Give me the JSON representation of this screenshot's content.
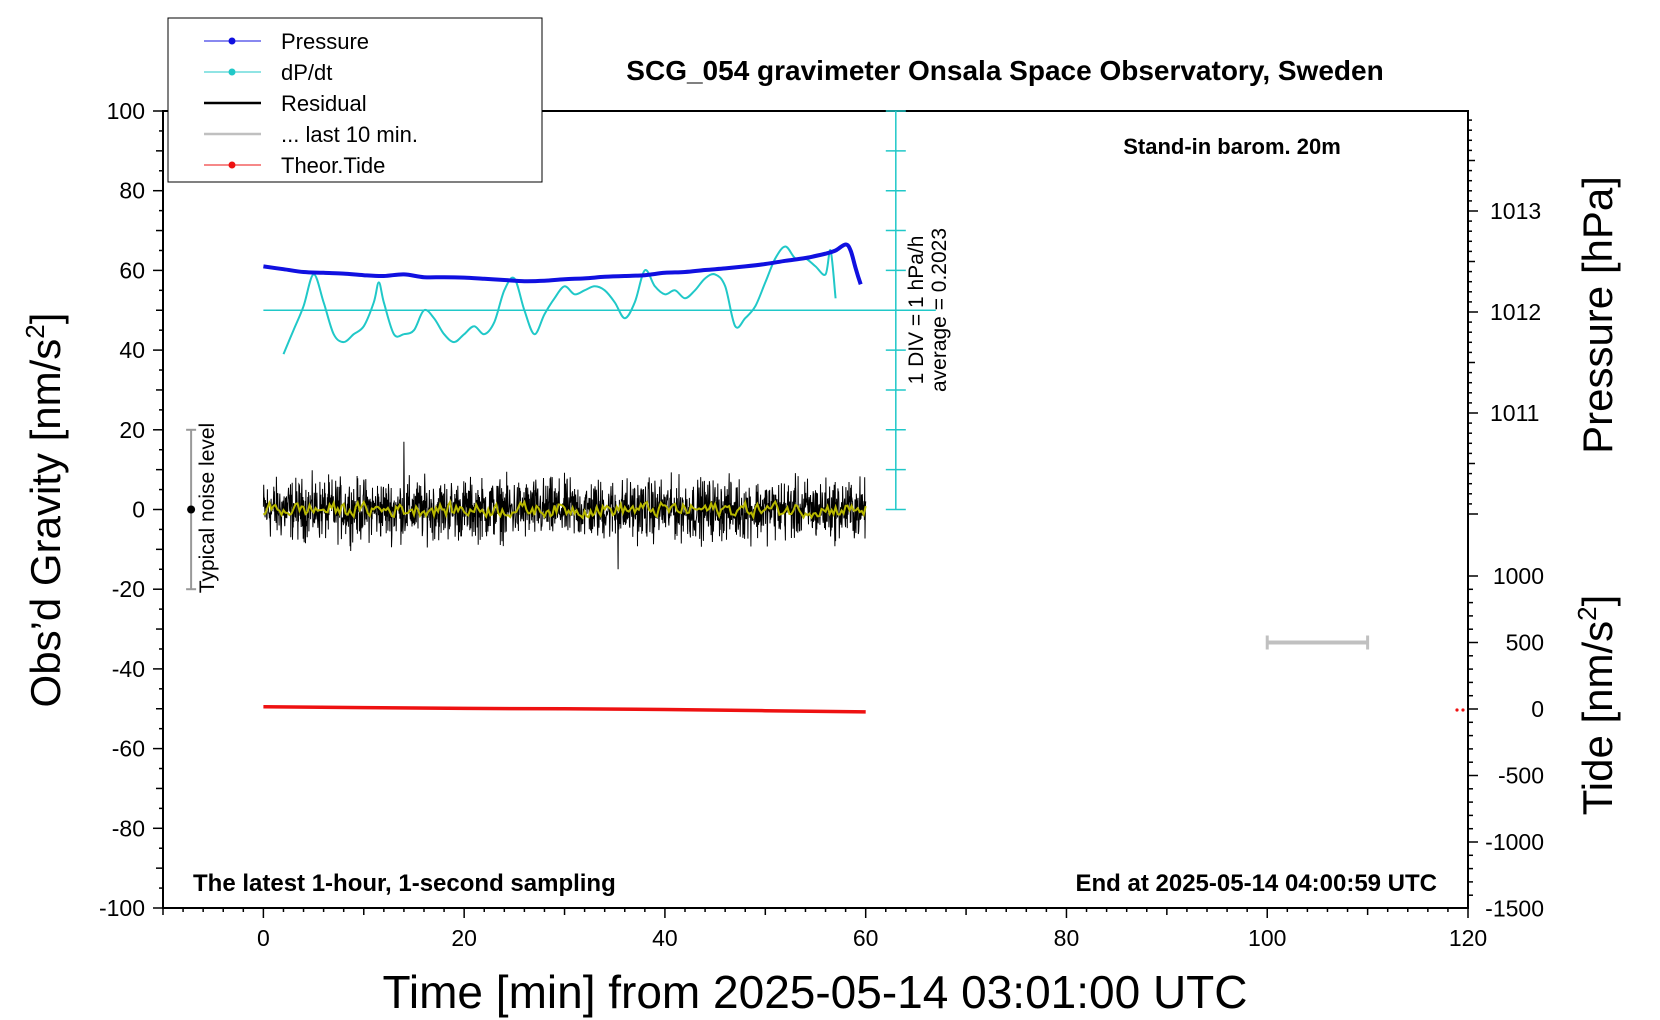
{
  "chart_data": {
    "type": "line",
    "title": "SCG_054 gravimeter Onsala Space Observatory, Sweden",
    "xlabel": "Time [min] from 2025-05-14 03:01:00 UTC",
    "ylabel_left": "Obs’d Gravity [nm/s",
    "ylabel_left_sup": "2",
    "ylabel_left_end": "]",
    "ylabel_right_top": "Pressure [hPa]",
    "ylabel_right_bottom": "Tide [nm/s",
    "ylabel_right_bottom_sup": "2",
    "ylabel_right_bottom_end": "]",
    "xlim": [
      -10,
      120
    ],
    "ylim_left": [
      -100,
      100
    ],
    "x_ticks": [
      "0",
      "20",
      "40",
      "60",
      "80",
      "100",
      "120"
    ],
    "y_ticks_left": [
      "100",
      "80",
      "60",
      "40",
      "20",
      "0",
      "-20",
      "-40",
      "-60",
      "-80",
      "-100"
    ],
    "pressure_ticks": [
      "1013",
      "1012",
      "1011"
    ],
    "tide_ticks": [
      "1000",
      "500",
      "0",
      "-500",
      "-1000",
      "-1500"
    ],
    "annotations": {
      "stand_in": "Stand-in barom. 20m",
      "div_label": "1 DIV = 1 hPa/h",
      "average_label": "average = 0.2023",
      "noise_label": "Typical noise level",
      "bottom_left": "The latest 1-hour, 1-second sampling",
      "bottom_right": "End at 2025-05-14 04:00:59 UTC"
    },
    "legend": {
      "placement": "top-left",
      "entries": [
        {
          "name": "Pressure",
          "color": "#1010e0"
        },
        {
          "name": "dP/dt",
          "color": "#20c8c8"
        },
        {
          "name": "Residual",
          "color": "#000000"
        },
        {
          "name": "... last 10 min.",
          "color": "#c0c0c0"
        },
        {
          "name": "Theor.Tide",
          "color": "#ee1111"
        }
      ]
    },
    "series": [
      {
        "name": "Pressure",
        "color": "#1010e0",
        "x": [
          0,
          2,
          4,
          6,
          8,
          10,
          12,
          14,
          16,
          18,
          20,
          22,
          24,
          26,
          28,
          30,
          32,
          34,
          36,
          38,
          40,
          42,
          44,
          46,
          48,
          50,
          52,
          54,
          56,
          57,
          58,
          58.5,
          59,
          59.5
        ],
        "y": [
          61,
          60.3,
          59.6,
          59.4,
          59.2,
          58.8,
          58.6,
          59.0,
          58.3,
          58.3,
          58.2,
          57.9,
          57.6,
          57.3,
          57.4,
          57.8,
          58.0,
          58.4,
          58.6,
          58.8,
          59.4,
          59.6,
          60.1,
          60.5,
          61.0,
          61.6,
          62.4,
          63.1,
          64.2,
          65.0,
          66.5,
          65.0,
          60.5,
          56.5
        ]
      },
      {
        "name": "dP/dt",
        "color": "#20c8c8",
        "x": [
          2,
          3,
          4,
          5,
          6,
          7,
          8,
          9,
          10,
          11,
          11.5,
          12,
          13,
          14,
          15,
          16,
          17,
          18,
          19,
          20,
          21,
          22,
          23,
          24,
          25,
          26,
          27,
          28,
          29,
          30,
          31,
          32,
          33,
          34,
          35,
          36,
          37,
          38,
          39,
          40,
          41,
          42,
          43,
          44,
          45,
          46,
          47,
          48,
          49,
          50,
          51,
          52,
          53,
          54,
          55,
          56,
          56.5,
          57
        ],
        "y": [
          39,
          45,
          51,
          59,
          52,
          44,
          42,
          44,
          46,
          52,
          57,
          52,
          44,
          44,
          45,
          50,
          48,
          44,
          42,
          44,
          46,
          44,
          47,
          55,
          58,
          50,
          44,
          49,
          53,
          56,
          54,
          55,
          56,
          55,
          52,
          48,
          52,
          60,
          56,
          54,
          55,
          53,
          55,
          58,
          59,
          56,
          46,
          48,
          51,
          57,
          63,
          66,
          63,
          63,
          61,
          59,
          65,
          53
        ]
      },
      {
        "name": "Residual",
        "color": "#000000",
        "x_range": [
          0,
          60
        ],
        "y_center": 0,
        "noise_amplitude": 11,
        "y_max": 17,
        "y_min": -15
      },
      {
        "name": "Residual (smoothed)",
        "color": "#b8b800",
        "x_range": [
          0,
          60
        ],
        "y_center": 0
      },
      {
        "name": "Theor.Tide",
        "color": "#ee1111",
        "x": [
          0,
          10,
          20,
          30,
          40,
          50,
          60
        ],
        "y": [
          -49.5,
          -49.7,
          -49.9,
          -50.0,
          -50.2,
          -50.5,
          -50.8
        ]
      }
    ],
    "reference_line_dpdt_average": 50,
    "noise_bar": {
      "center": 0,
      "half_width": 20
    },
    "last_10_min_bar": {
      "x": [
        100,
        110
      ],
      "tide_value": 500
    }
  }
}
